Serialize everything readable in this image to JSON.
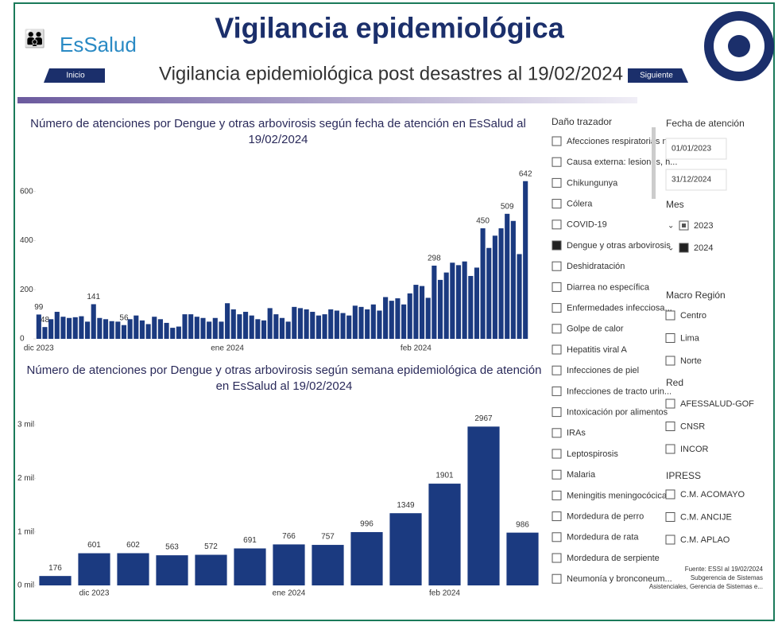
{
  "header": {
    "brand": "EsSalud",
    "title": "Vigilancia epidemiológica",
    "subtitle": "Vigilancia epidemiológica post desastres al 19/02/2024",
    "buttons": [
      "Inicio",
      "Siguiente"
    ]
  },
  "chart_data": [
    {
      "type": "bar",
      "title": "Número de atenciones por Dengue y otras arbovirosis según fecha de atención en EsSalud al 19/02/2024",
      "color": "#1b3a80",
      "categories": [
        "dic 2023",
        null,
        null,
        null,
        null,
        null,
        null,
        null,
        null,
        null,
        null,
        null,
        null,
        null,
        null,
        null,
        null,
        null,
        null,
        null,
        null,
        null,
        null,
        null,
        null,
        null,
        null,
        null,
        null,
        null,
        null,
        "ene 2024",
        null,
        null,
        null,
        null,
        null,
        null,
        null,
        null,
        null,
        null,
        null,
        null,
        null,
        null,
        null,
        null,
        null,
        null,
        null,
        null,
        null,
        null,
        null,
        null,
        null,
        null,
        null,
        null,
        null,
        null,
        "feb 2024",
        null,
        null,
        null,
        null,
        null,
        null,
        null,
        null,
        null,
        null,
        null,
        null,
        null,
        null,
        null,
        null,
        null,
        null
      ],
      "values": [
        99,
        48,
        80,
        110,
        90,
        85,
        88,
        92,
        70,
        141,
        85,
        80,
        72,
        70,
        56,
        80,
        95,
        75,
        60,
        90,
        80,
        65,
        45,
        50,
        100,
        100,
        90,
        85,
        70,
        85,
        70,
        145,
        120,
        100,
        110,
        95,
        80,
        75,
        125,
        100,
        85,
        70,
        130,
        125,
        120,
        110,
        95,
        100,
        120,
        115,
        105,
        95,
        135,
        130,
        120,
        140,
        115,
        170,
        155,
        165,
        140,
        185,
        220,
        215,
        167,
        298,
        240,
        270,
        310,
        300,
        315,
        256,
        290,
        450,
        370,
        420,
        450,
        509,
        480,
        345,
        642
      ],
      "value_labels": [
        "99",
        "48",
        null,
        null,
        null,
        null,
        null,
        null,
        null,
        "141",
        null,
        null,
        null,
        null,
        "56",
        null,
        null,
        null,
        null,
        null,
        null,
        null,
        null,
        null,
        null,
        null,
        null,
        null,
        null,
        null,
        null,
        null,
        null,
        null,
        null,
        null,
        null,
        null,
        null,
        null,
        null,
        null,
        null,
        null,
        null,
        null,
        null,
        null,
        null,
        null,
        null,
        null,
        null,
        null,
        null,
        null,
        null,
        null,
        null,
        null,
        null,
        null,
        null,
        null,
        null,
        "298",
        null,
        null,
        null,
        null,
        null,
        null,
        null,
        "450",
        null,
        null,
        null,
        "509",
        null,
        null,
        "642"
      ],
      "ylim": [
        0,
        680
      ],
      "yticks": [
        0,
        200,
        400,
        600
      ]
    },
    {
      "type": "bar",
      "title": "Número de atenciones por Dengue y otras arbovirosis según semana epidemiológica de atención en EsSalud al 19/02/2024",
      "color": "#1b3a80",
      "categories": [
        null,
        "dic 2023",
        null,
        null,
        null,
        null,
        "ene 2024",
        null,
        null,
        null,
        "feb 2024",
        null,
        null
      ],
      "values": [
        176,
        601,
        602,
        563,
        572,
        691,
        766,
        757,
        996,
        1349,
        1901,
        2967,
        986
      ],
      "ylim": [
        0,
        3150
      ],
      "yticks": [
        {
          "value": 0,
          "label": "0 mil"
        },
        {
          "value": 1000,
          "label": "1 mil"
        },
        {
          "value": 2000,
          "label": "2 mil"
        },
        {
          "value": 3000,
          "label": "3 mil"
        }
      ]
    }
  ],
  "filters": {
    "dano": {
      "title": "Daño trazador",
      "items": [
        {
          "label": "Afecciones respiratorias n..."
        },
        {
          "label": "Causa externa: lesiones, h..."
        },
        {
          "label": "Chikungunya"
        },
        {
          "label": "Cólera"
        },
        {
          "label": "COVID-19"
        },
        {
          "label": "Dengue y otras arbovirosis",
          "checked": true
        },
        {
          "label": "Deshidratación"
        },
        {
          "label": "Diarrea no específica"
        },
        {
          "label": "Enfermedades infecciosa..."
        },
        {
          "label": "Golpe de calor"
        },
        {
          "label": "Hepatitis viral A"
        },
        {
          "label": "Infecciones de piel"
        },
        {
          "label": "Infecciones de tracto urin..."
        },
        {
          "label": "Intoxicación por alimentos"
        },
        {
          "label": "IRAs"
        },
        {
          "label": "Leptospirosis"
        },
        {
          "label": "Malaria"
        },
        {
          "label": "Meningitis meningocócica"
        },
        {
          "label": "Mordedura de perro"
        },
        {
          "label": "Mordedura de rata"
        },
        {
          "label": "Mordedura de serpiente"
        },
        {
          "label": "Neumonía y bronconeum..."
        }
      ]
    },
    "fecha": {
      "title": "Fecha de atención",
      "from": "01/01/2023",
      "to": "31/12/2024"
    },
    "mes": {
      "title": "Mes",
      "items": [
        {
          "label": "2023",
          "partial": true
        },
        {
          "label": "2024",
          "checked": true
        }
      ]
    },
    "macro": {
      "title": "Macro Región",
      "items": [
        {
          "label": "Centro"
        },
        {
          "label": "Lima"
        },
        {
          "label": "Norte"
        }
      ]
    },
    "red": {
      "title": "Red",
      "items": [
        {
          "label": "AFESSALUD-GOF"
        },
        {
          "label": "CNSR"
        },
        {
          "label": "INCOR"
        }
      ]
    },
    "ipress": {
      "title": "IPRESS",
      "items": [
        {
          "label": "C.M. ACOMAYO"
        },
        {
          "label": "C.M. ANCIJE"
        },
        {
          "label": "C.M. APLAO"
        }
      ]
    }
  },
  "footer": [
    "Fuente: ESSI al 19/02/2024",
    "Subgerencia de Sistemas",
    "Asistenciales, Gerencia de Sistemas e..."
  ]
}
